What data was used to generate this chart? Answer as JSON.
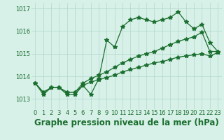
{
  "title": "Graphe pression niveau de la mer (hPa)",
  "xlim": [
    -0.5,
    23.5
  ],
  "ylim": [
    1012.55,
    1017.25
  ],
  "yticks": [
    1013,
    1014,
    1015,
    1016,
    1017
  ],
  "xticks": [
    0,
    1,
    2,
    3,
    4,
    5,
    6,
    7,
    8,
    9,
    10,
    11,
    12,
    13,
    14,
    15,
    16,
    17,
    18,
    19,
    20,
    21,
    22,
    23
  ],
  "bg_color": "#d7f0e8",
  "grid_color": "#b0d8cc",
  "line_color": "#1a6e2e",
  "series1": [
    1013.7,
    1013.2,
    1013.5,
    1013.5,
    1013.2,
    1013.2,
    1013.6,
    1013.2,
    1013.9,
    1015.6,
    1015.3,
    1016.2,
    1016.5,
    1016.6,
    1016.5,
    1016.4,
    1016.5,
    1016.6,
    1016.85,
    1016.4,
    1016.1,
    1016.3,
    1015.5,
    1015.1
  ],
  "series2": [
    1013.7,
    1013.3,
    1013.5,
    1013.5,
    1013.3,
    1013.3,
    1013.7,
    1013.9,
    1014.05,
    1014.2,
    1014.4,
    1014.6,
    1014.75,
    1014.9,
    1015.0,
    1015.1,
    1015.25,
    1015.4,
    1015.55,
    1015.65,
    1015.75,
    1015.95,
    1015.1,
    1015.1
  ],
  "series3": [
    1013.7,
    1013.3,
    1013.5,
    1013.5,
    1013.3,
    1013.3,
    1013.6,
    1013.75,
    1013.85,
    1013.95,
    1014.05,
    1014.2,
    1014.3,
    1014.4,
    1014.5,
    1014.6,
    1014.65,
    1014.75,
    1014.85,
    1014.9,
    1014.95,
    1015.0,
    1014.9,
    1015.05
  ],
  "marker": "*",
  "marker_size": 4,
  "linewidth": 0.9,
  "title_fontsize": 8.5,
  "tick_fontsize": 6.0,
  "fig_width": 3.2,
  "fig_height": 2.0,
  "dpi": 100
}
